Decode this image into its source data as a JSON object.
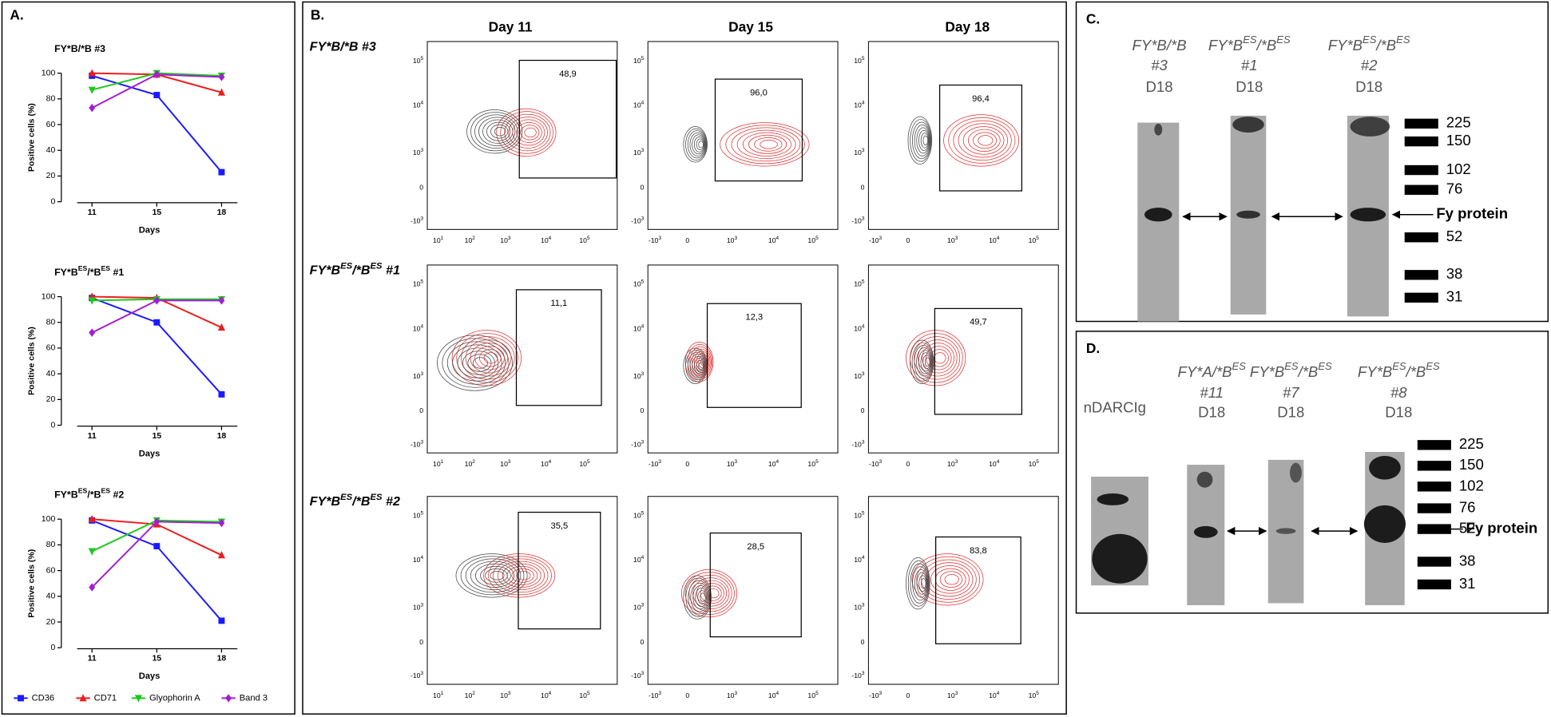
{
  "panel_a": {
    "label": "A."
  },
  "chart_data": [
    {
      "type": "line",
      "title": [
        "FY*B/*B #3"
      ],
      "categories": [
        "11",
        "15",
        "18"
      ],
      "xlabel": "Days",
      "ylabel": "Positive cells (%)",
      "ylim": [
        0,
        100
      ],
      "yticks": [
        0,
        20,
        40,
        60,
        80,
        100
      ],
      "series": [
        {
          "name": "CD36",
          "color": "#1a1aff",
          "marker": "square",
          "values": [
            98,
            83,
            23
          ]
        },
        {
          "name": "CD71",
          "color": "#ee1c1c",
          "marker": "triangle-up",
          "values": [
            100,
            99,
            85
          ]
        },
        {
          "name": "Glyophorin A",
          "color": "#1ec81e",
          "marker": "triangle-down",
          "values": [
            87,
            100,
            98
          ]
        },
        {
          "name": "Band 3",
          "color": "#a020d0",
          "marker": "diamond",
          "values": [
            73,
            99,
            97
          ]
        }
      ]
    },
    {
      "type": "line",
      "title": [
        "FY*B",
        "ES",
        "/*B",
        "ES",
        " #1"
      ],
      "categories": [
        "11",
        "15",
        "18"
      ],
      "xlabel": "Days",
      "ylabel": "Positive cells (%)",
      "ylim": [
        0,
        100
      ],
      "yticks": [
        0,
        20,
        40,
        60,
        80,
        100
      ],
      "series": [
        {
          "name": "CD36",
          "color": "#1a1aff",
          "marker": "square",
          "values": [
            99,
            80,
            24
          ]
        },
        {
          "name": "CD71",
          "color": "#ee1c1c",
          "marker": "triangle-up",
          "values": [
            100,
            99,
            76
          ]
        },
        {
          "name": "Glyophorin A",
          "color": "#1ec81e",
          "marker": "triangle-down",
          "values": [
            97,
            98,
            98
          ]
        },
        {
          "name": "Band 3",
          "color": "#a020d0",
          "marker": "diamond",
          "values": [
            72,
            97,
            97
          ]
        }
      ]
    },
    {
      "type": "line",
      "title": [
        "FY*B",
        "ES",
        "/*B",
        "ES",
        " #2"
      ],
      "categories": [
        "11",
        "15",
        "18"
      ],
      "xlabel": "Days",
      "ylabel": "Positive cells (%)",
      "ylim": [
        0,
        100
      ],
      "yticks": [
        0,
        20,
        40,
        60,
        80,
        100
      ],
      "series": [
        {
          "name": "CD36",
          "color": "#1a1aff",
          "marker": "square",
          "values": [
            99,
            79,
            21
          ]
        },
        {
          "name": "CD71",
          "color": "#ee1c1c",
          "marker": "triangle-up",
          "values": [
            100,
            96,
            72
          ]
        },
        {
          "name": "Glyophorin A",
          "color": "#1ec81e",
          "marker": "triangle-down",
          "values": [
            75,
            99,
            98
          ]
        },
        {
          "name": "Band 3",
          "color": "#a020d0",
          "marker": "diamond",
          "values": [
            47,
            98,
            97
          ]
        }
      ]
    }
  ],
  "panel_b": {
    "label": "B.",
    "columns": [
      "Day 11",
      "Day 15",
      "Day 18"
    ],
    "rows": [
      {
        "genotype": [
          "FY*B/*B #3"
        ],
        "gates": [
          "48,9",
          "96,0",
          "96,4"
        ]
      },
      {
        "genotype": [
          "FY*B",
          "ES",
          "/*B",
          "ES",
          " #1"
        ],
        "gates": [
          "11,1",
          "12,3",
          "49,7"
        ]
      },
      {
        "genotype": [
          "FY*B",
          "ES",
          "/*B",
          "ES",
          " #2"
        ],
        "gates": [
          "35,5",
          "28,5",
          "83,8"
        ]
      }
    ],
    "yticks": [
      {
        "base": "-10",
        "exp": "3"
      },
      {
        "base": "0"
      },
      {
        "base": "10",
        "exp": "3"
      },
      {
        "base": "10",
        "exp": "4"
      },
      {
        "base": "10",
        "exp": "5"
      }
    ],
    "xticks_day11": [
      {
        "base": "10",
        "exp": "1"
      },
      {
        "base": "10",
        "exp": "2"
      },
      {
        "base": "10",
        "exp": "3"
      },
      {
        "base": "10",
        "exp": "4"
      },
      {
        "base": "10",
        "exp": "5"
      }
    ],
    "xticks": [
      {
        "base": "-10",
        "exp": "3"
      },
      {
        "base": "0"
      },
      {
        "base": "10",
        "exp": "3"
      },
      {
        "base": "10",
        "exp": "4"
      },
      {
        "base": "10",
        "exp": "5"
      }
    ]
  },
  "panel_c": {
    "label": "C.",
    "lanes": [
      {
        "genotype": [
          "FY*B/*B"
        ],
        "clone": "#3",
        "day": "D18"
      },
      {
        "genotype": [
          "FY*B",
          "ES",
          "/*B",
          "ES"
        ],
        "clone": "#1",
        "day": "D18"
      },
      {
        "genotype": [
          "FY*B",
          "ES",
          "/*B",
          "ES"
        ],
        "clone": "#2",
        "day": "D18"
      }
    ],
    "markers": [
      "225",
      "150",
      "102",
      "76",
      "52",
      "38",
      "31"
    ],
    "band": "Fy protein"
  },
  "panel_d": {
    "label": "D.",
    "control": "nDARCIg",
    "lanes": [
      {
        "genotype": [
          "FY*A/*B",
          "ES"
        ],
        "clone": "#11",
        "day": "D18"
      },
      {
        "genotype": [
          "FY*B",
          "ES",
          "/*B",
          "ES"
        ],
        "clone": "#7",
        "day": "D18"
      },
      {
        "genotype": [
          "FY*B",
          "ES",
          "/*B",
          "ES"
        ],
        "clone": "#8",
        "day": "D18"
      }
    ],
    "markers": [
      "225",
      "150",
      "102",
      "76",
      "52",
      "38",
      "31"
    ],
    "band": "Fy protein"
  }
}
